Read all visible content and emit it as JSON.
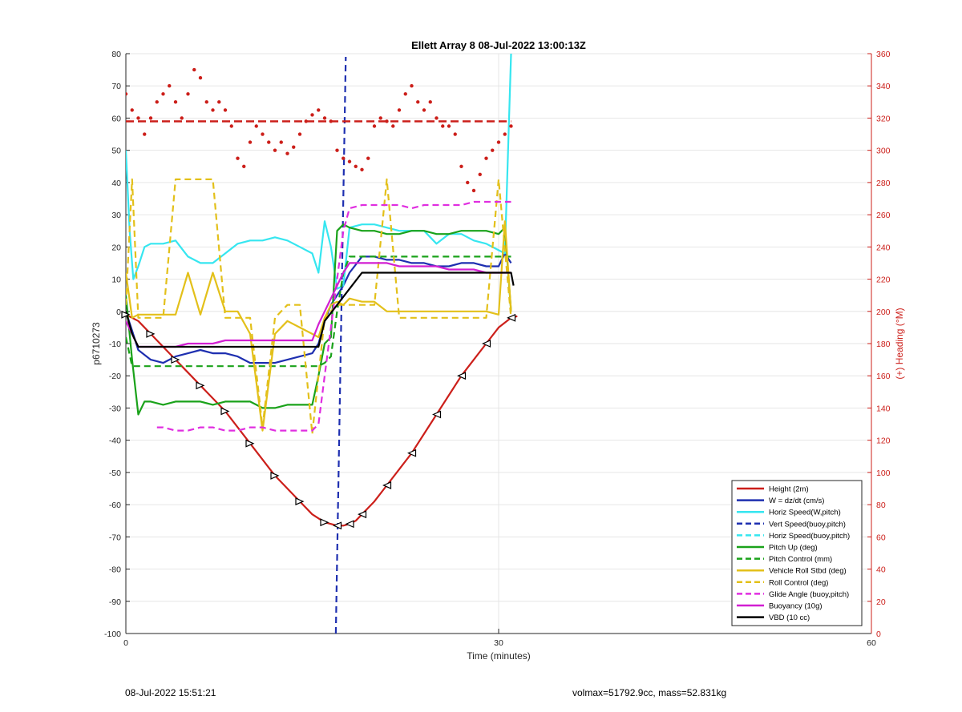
{
  "chart_data": {
    "type": "line",
    "title": "Ellett Array 8 08-Jul-2022 13:00:13Z",
    "xlabel": "Time (minutes)",
    "ylabel": "p6710273",
    "y2label": "(+) Heading (°M)",
    "xlim": [
      0,
      60
    ],
    "ylim": [
      -100,
      80
    ],
    "y2lim": [
      0,
      360
    ],
    "xticks": [
      "0",
      "30",
      "60"
    ],
    "yticks": [
      "80",
      "70",
      "60",
      "50",
      "40",
      "30",
      "20",
      "10",
      "0",
      "-10",
      "-20",
      "-30",
      "-40",
      "-50",
      "-60",
      "-70",
      "-80",
      "-90",
      "-100"
    ],
    "y2ticks": [
      "360",
      "340",
      "320",
      "300",
      "280",
      "260",
      "240",
      "220",
      "200",
      "180",
      "160",
      "140",
      "120",
      "100",
      "80",
      "60",
      "40",
      "20",
      "0"
    ],
    "grid": true,
    "legend_position": "bottom-right",
    "series": [
      {
        "name": "Height (2m)",
        "color": "#cc1f1a",
        "style": "solid",
        "x": [
          0,
          1,
          2,
          3,
          4,
          5,
          6,
          7,
          8,
          9,
          10,
          11,
          12,
          13,
          14,
          15,
          16,
          16.5,
          17,
          17.5,
          18,
          18.5,
          19,
          20,
          21,
          22,
          23,
          24,
          25,
          26,
          27,
          28,
          29,
          30,
          31,
          31.5
        ],
        "y": [
          -1,
          -3,
          -7,
          -11,
          -15,
          -19,
          -23,
          -27,
          -31,
          -36,
          -41,
          -46,
          -51,
          -55,
          -59,
          -63,
          -65.5,
          -66,
          -66.5,
          -66.5,
          -66,
          -65,
          -63,
          -59,
          -54,
          -49,
          -44,
          -38,
          -32,
          -26,
          -20,
          -15,
          -10,
          -5,
          -2,
          -1.5
        ]
      },
      {
        "name": "W = dz/dt (cm/s)",
        "color": "#1e2fb0",
        "style": "solid",
        "x": [
          0,
          0.5,
          1,
          2,
          3,
          4,
          5,
          6,
          7,
          8,
          9,
          10,
          11,
          12,
          13,
          14,
          15,
          15.5,
          16,
          16.5,
          17,
          17.5,
          18,
          19,
          20,
          21,
          22,
          23,
          24,
          25,
          26,
          27,
          28,
          29,
          30,
          30.5,
          31
        ],
        "y": [
          0,
          -6,
          -12,
          -15,
          -16,
          -14,
          -13,
          -12,
          -13,
          -13,
          -14,
          -16,
          -16,
          -16,
          -15,
          -14,
          -13,
          -10,
          -3,
          2,
          5,
          8,
          12,
          17,
          17,
          16,
          16,
          15,
          15,
          14,
          14,
          15,
          15,
          14,
          14,
          18,
          15
        ]
      },
      {
        "name": "Horiz Speed(W,pitch)",
        "color": "#36e6f0",
        "style": "solid",
        "x": [
          0,
          0.3,
          0.6,
          1,
          1.5,
          2,
          3,
          4,
          5,
          6,
          7,
          8,
          9,
          10,
          11,
          12,
          13,
          14,
          15,
          15.5,
          16,
          16.5,
          17,
          17.5,
          18,
          19,
          20,
          21,
          22,
          23,
          24,
          25,
          26,
          27,
          28,
          29,
          30,
          30.5,
          31
        ],
        "y": [
          50,
          25,
          10,
          14,
          20,
          21,
          21,
          22,
          17,
          15,
          15,
          18,
          21,
          22,
          22,
          23,
          22,
          20,
          18,
          12,
          28,
          20,
          7,
          8,
          26,
          27,
          27,
          26,
          25,
          25,
          25,
          21,
          24,
          24,
          22,
          21,
          19,
          18,
          80
        ]
      },
      {
        "name": "Vert Speed(buoy,pitch)",
        "color": "#1e2fb0",
        "style": "dashed",
        "x": [
          16.9,
          17.7
        ],
        "y": [
          -100,
          79
        ]
      },
      {
        "name": "Horiz Speed(buoy,pitch)",
        "color": "#36e6f0",
        "style": "dashed",
        "x": [],
        "y": []
      },
      {
        "name": "Pitch Up (deg)",
        "color": "#1aa21a",
        "style": "solid",
        "x": [
          0,
          0.5,
          1,
          1.5,
          2,
          3,
          4,
          5,
          6,
          7,
          8,
          9,
          10,
          11,
          12,
          13,
          14,
          15,
          15.5,
          16,
          16.5,
          17,
          17.5,
          18,
          19,
          20,
          21,
          22,
          23,
          24,
          25,
          26,
          27,
          28,
          29,
          30,
          30.5,
          31
        ],
        "y": [
          5,
          -15,
          -32,
          -28,
          -28,
          -29,
          -28,
          -28,
          -28,
          -29,
          -28,
          -28,
          -28,
          -30,
          -30,
          -29,
          -29,
          -29,
          -20,
          -10,
          -8,
          25,
          27,
          26,
          25,
          25,
          24,
          24,
          25,
          25,
          24,
          24,
          25,
          25,
          25,
          24,
          26,
          0
        ]
      },
      {
        "name": "Pitch Control (mm)",
        "color": "#1aa21a",
        "style": "dashed",
        "x": [
          0,
          0.5,
          1,
          2,
          4,
          6,
          8,
          10,
          12,
          14,
          15.5,
          16,
          16.5,
          17,
          17.5,
          18,
          20,
          22,
          24,
          26,
          28,
          30,
          31
        ],
        "y": [
          -8,
          -17,
          -17,
          -17,
          -17,
          -17,
          -17,
          -17,
          -17,
          -17,
          -17,
          -16,
          -14,
          0,
          12,
          17,
          17,
          17,
          17,
          17,
          17,
          17,
          17
        ]
      },
      {
        "name": "Vehicle Roll Stbd (deg)",
        "color": "#e3c01a",
        "style": "solid",
        "x": [
          0,
          0.5,
          1,
          1.5,
          2,
          3,
          4,
          5,
          6,
          7,
          8,
          9,
          10,
          11,
          12,
          13,
          14,
          15,
          15.5,
          16,
          16.5,
          17,
          17.5,
          18,
          19,
          20,
          21,
          22,
          23,
          24,
          25,
          26,
          27,
          28,
          29,
          30,
          30.5,
          31
        ],
        "y": [
          12,
          -2,
          -1,
          -1,
          -1,
          -1,
          -1,
          12,
          -1,
          12,
          0,
          0,
          -7,
          -37,
          -7,
          -3,
          -5,
          -7,
          -8,
          -2,
          2,
          3,
          2,
          4,
          3,
          3,
          0,
          0,
          0,
          0,
          0,
          0,
          0,
          0,
          0,
          -1,
          28,
          0
        ]
      },
      {
        "name": "Roll Control (deg)",
        "color": "#e3c01a",
        "style": "dashed",
        "x": [
          0,
          0.5,
          1,
          1.5,
          2,
          3,
          4,
          5,
          6,
          7,
          8,
          9,
          10,
          11,
          12,
          13,
          14,
          15,
          16,
          17,
          18,
          19,
          20,
          21,
          22,
          23,
          24,
          25,
          26,
          27,
          28,
          29,
          30,
          31
        ],
        "y": [
          2,
          41,
          -2,
          -2,
          -2,
          -2,
          41,
          41,
          41,
          41,
          -2,
          -2,
          -2,
          -36,
          -2,
          2,
          2,
          -38,
          -2,
          2,
          2,
          2,
          2,
          41,
          -2,
          -2,
          -2,
          -2,
          -2,
          -2,
          -2,
          -2,
          41,
          -2
        ]
      },
      {
        "name": "Glide Angle (buoy,pitch)",
        "color": "#e02ee0",
        "style": "dashed",
        "x": [
          2.5,
          3,
          4,
          5,
          6,
          7,
          8,
          9,
          10,
          11,
          12,
          13,
          14,
          15,
          15.5,
          16,
          16.5,
          17,
          17.5,
          18,
          19,
          20,
          21,
          22,
          23,
          24,
          25,
          26,
          27,
          28,
          29,
          30,
          31
        ],
        "y": [
          -36,
          -36,
          -37,
          -37,
          -36,
          -36,
          -37,
          -37,
          -36,
          -36,
          -37,
          -37,
          -37,
          -37,
          -35,
          -20,
          -5,
          10,
          25,
          32,
          33,
          33,
          33,
          33,
          32,
          33,
          33,
          33,
          33,
          34,
          34,
          34,
          34
        ]
      },
      {
        "name": "Buoyancy (10g)",
        "color": "#d21fd2",
        "style": "solid",
        "x": [
          0,
          1,
          2,
          3,
          4,
          5,
          6,
          7,
          8,
          9,
          10,
          11,
          12,
          13,
          14,
          15,
          15.5,
          16,
          16.5,
          17,
          17.5,
          18,
          19,
          20,
          21,
          22,
          23,
          24,
          25,
          26,
          27,
          28,
          29,
          30,
          31
        ],
        "y": [
          -3,
          -11,
          -11,
          -11,
          -11,
          -10,
          -10,
          -10,
          -9,
          -9,
          -9,
          -9,
          -9,
          -9,
          -9,
          -9,
          -4,
          0,
          4,
          8,
          12,
          15,
          15,
          15,
          15,
          14,
          14,
          14,
          14,
          13,
          13,
          13,
          12,
          12,
          12
        ]
      },
      {
        "name": "VBD (10 cc)",
        "color": "#000000",
        "style": "solid",
        "x": [
          0,
          0.5,
          1,
          2,
          4,
          6,
          8,
          10,
          12,
          14,
          15.5,
          16,
          18,
          19,
          20,
          22,
          24,
          26,
          28,
          30,
          31,
          31.2
        ],
        "y": [
          0,
          -7,
          -11,
          -11,
          -11,
          -11,
          -11,
          -11,
          -11,
          -11,
          -11,
          -3,
          7,
          12,
          12,
          12,
          12,
          12,
          12,
          12,
          12,
          8
        ]
      },
      {
        "name": "Heading",
        "color": "#cc1f1a",
        "style": "dotted",
        "axis": "right",
        "x": [
          0,
          0.5,
          1,
          1.5,
          2,
          2.5,
          3,
          3.5,
          4,
          4.5,
          5,
          5.5,
          6,
          6.5,
          7,
          7.5,
          8,
          8.5,
          9,
          9.5,
          10,
          10.5,
          11,
          11.5,
          12,
          12.5,
          13,
          13.5,
          14,
          14.5,
          15,
          15.5,
          16,
          16.5,
          17,
          17.5,
          18,
          18.5,
          19,
          19.5,
          20,
          20.5,
          21,
          21.5,
          22,
          22.5,
          23,
          23.5,
          24,
          24.5,
          25,
          25.5,
          26,
          26.5,
          27,
          27.5,
          28,
          28.5,
          29,
          29.5,
          30,
          30.5,
          31
        ],
        "y": [
          335,
          325,
          320,
          310,
          320,
          330,
          335,
          340,
          330,
          320,
          335,
          350,
          345,
          330,
          325,
          330,
          325,
          315,
          295,
          290,
          305,
          315,
          310,
          305,
          300,
          305,
          298,
          302,
          310,
          318,
          322,
          325,
          320,
          318,
          300,
          295,
          293,
          290,
          288,
          295,
          315,
          320,
          318,
          315,
          325,
          335,
          340,
          330,
          325,
          330,
          320,
          315,
          315,
          310,
          290,
          280,
          275,
          285,
          295,
          300,
          305,
          310,
          315
        ]
      }
    ]
  },
  "footer": {
    "left": "08-Jul-2022 15:51:21",
    "right": "volmax=51792.9cc, mass=52.831kg"
  }
}
